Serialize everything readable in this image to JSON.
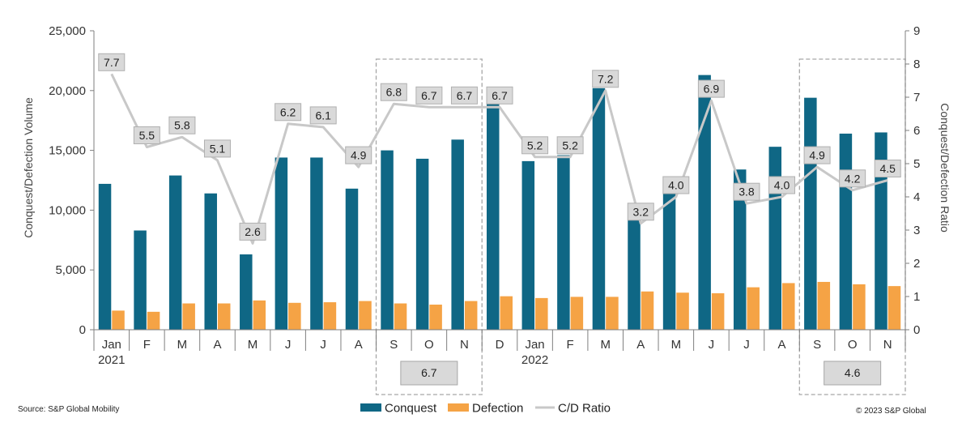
{
  "chart_data": {
    "type": "bar",
    "categories": [
      "Jan",
      "F",
      "M",
      "A",
      "M",
      "J",
      "J",
      "A",
      "S",
      "O",
      "N",
      "D",
      "Jan",
      "F",
      "M",
      "A",
      "M",
      "J",
      "J",
      "A",
      "S",
      "O",
      "N"
    ],
    "year_labels": [
      {
        "index": 0,
        "label": "2021"
      },
      {
        "index": 12,
        "label": "2022"
      }
    ],
    "series": [
      {
        "name": "Conquest",
        "axis": "left",
        "color": "#0f6785",
        "values": [
          12200,
          8300,
          12900,
          11400,
          6300,
          14400,
          14400,
          11800,
          15000,
          14300,
          15900,
          19000,
          14100,
          14600,
          20200,
          9900,
          12400,
          21300,
          13400,
          15300,
          19400,
          16400,
          16500
        ]
      },
      {
        "name": "Defection",
        "axis": "left",
        "color": "#f5a345",
        "values": [
          1600,
          1500,
          2200,
          2200,
          2450,
          2250,
          2300,
          2400,
          2200,
          2100,
          2400,
          2800,
          2650,
          2750,
          2750,
          3200,
          3100,
          3050,
          3550,
          3900,
          4000,
          3800,
          3650
        ]
      },
      {
        "name": "C/D Ratio",
        "axis": "right",
        "type": "line",
        "color": "#c8c8c8",
        "values": [
          7.7,
          5.5,
          5.8,
          5.1,
          2.6,
          6.2,
          6.1,
          4.9,
          6.8,
          6.7,
          6.7,
          6.7,
          5.2,
          5.2,
          7.2,
          3.2,
          4.0,
          6.9,
          3.8,
          4.0,
          4.9,
          4.2,
          4.5
        ],
        "labels": [
          "7.7",
          "5.5",
          "5.8",
          "5.1",
          "2.6",
          "6.2",
          "6.1",
          "4.9",
          "6.8",
          "6.7",
          "6.7",
          "6.7",
          "5.2",
          "5.2",
          "7.2",
          "3.2",
          "4.0",
          "6.9",
          "3.8",
          "4.0",
          "4.9",
          "4.2",
          "4.5"
        ]
      }
    ],
    "left_axis": {
      "title": "Conquest/Defection Volume",
      "min": 0,
      "max": 25000,
      "ticks": [
        "0",
        "5,000",
        "10,000",
        "15,000",
        "20,000",
        "25,000"
      ]
    },
    "right_axis": {
      "title": "Conquest/Defection Ratio",
      "min": 0,
      "max": 9,
      "ticks": [
        "0",
        "1",
        "2",
        "3",
        "4",
        "5",
        "6",
        "7",
        "8",
        "9"
      ]
    },
    "highlight_groups": [
      {
        "start": 8,
        "end": 10,
        "average_label": "6.7"
      },
      {
        "start": 20,
        "end": 22,
        "average_label": "4.6"
      }
    ],
    "legend": [
      "Conquest",
      "Defection",
      "C/D Ratio"
    ],
    "legend_position": "bottom-center",
    "grid": false
  },
  "footer": {
    "source": "Source: S&P Global Mobility",
    "copyright": "© 2023 S&P Global"
  }
}
